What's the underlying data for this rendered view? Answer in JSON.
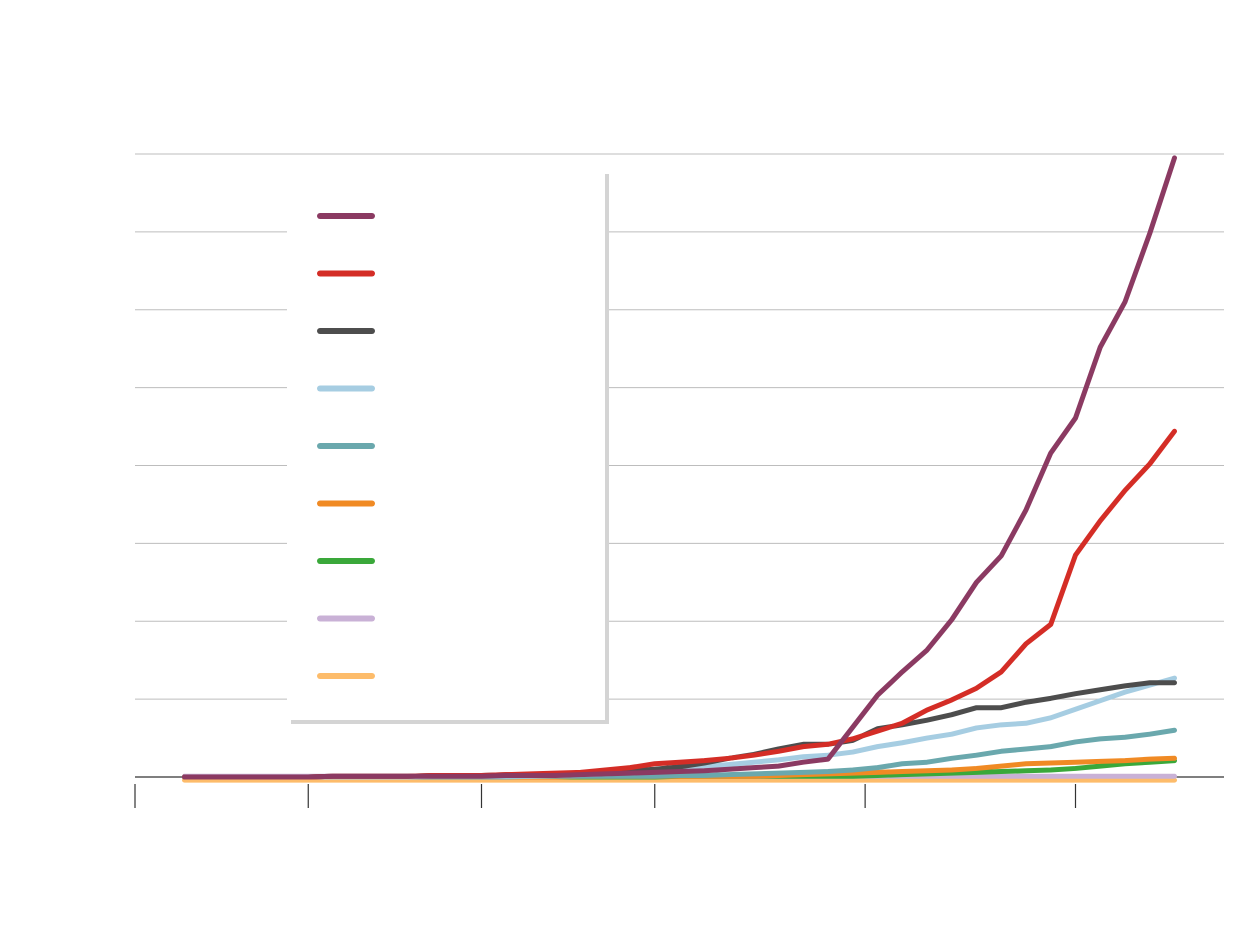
{
  "chart_data": {
    "type": "line",
    "x": [
      2,
      3,
      4,
      5,
      6,
      7,
      8,
      9,
      10,
      11,
      12,
      13,
      14,
      15,
      16,
      17,
      18,
      19,
      20,
      21,
      22,
      23,
      24,
      25,
      26,
      27,
      28,
      29,
      30,
      31,
      32,
      33,
      34,
      35,
      36,
      37,
      38,
      39,
      40,
      41,
      42
    ],
    "xlim": [
      0,
      44
    ],
    "xticks": [
      0,
      7,
      14,
      21,
      29.5,
      38
    ],
    "ylim": [
      0,
      80
    ],
    "yticks": [
      0,
      10,
      20,
      30,
      40,
      50,
      60,
      70,
      80
    ],
    "grid": true,
    "legend": "upper left",
    "series": [
      {
        "color": "#8b3a62",
        "values": [
          0,
          0,
          0,
          0,
          0,
          0,
          0.1,
          0.1,
          0.1,
          0.1,
          0.1,
          0.1,
          0.1,
          0.2,
          0.2,
          0.2,
          0.3,
          0.4,
          0.5,
          0.6,
          0.7,
          0.8,
          1.0,
          1.2,
          1.4,
          1.9,
          2.3,
          6.4,
          10.5,
          13.5,
          16.3,
          20.2,
          25,
          28.4,
          34.3,
          41.6,
          46.1,
          55.2,
          61,
          69.8,
          79.5
        ]
      },
      {
        "color": "#d42d26",
        "values": [
          0,
          0,
          0,
          0,
          0,
          0,
          0.1,
          0.1,
          0.1,
          0.1,
          0.2,
          0.2,
          0.2,
          0.3,
          0.4,
          0.5,
          0.6,
          0.9,
          1.2,
          1.7,
          1.9,
          2.1,
          2.4,
          2.8,
          3.3,
          3.9,
          4.2,
          4.9,
          5.9,
          6.9,
          8.6,
          9.9,
          11.4,
          13.5,
          17.1,
          19.6,
          28.5,
          32.9,
          36.8,
          40.2,
          44.4
        ]
      },
      {
        "color": "#4d4d4d",
        "values": [
          0,
          0,
          0,
          0,
          0,
          0,
          0.1,
          0.1,
          0.1,
          0.1,
          0.2,
          0.2,
          0.2,
          0.3,
          0.3,
          0.4,
          0.5,
          0.6,
          0.8,
          1.0,
          1.3,
          1.8,
          2.4,
          2.9,
          3.6,
          4.2,
          4.2,
          4.7,
          6.2,
          6.7,
          7.3,
          8,
          8.9,
          8.9,
          9.6,
          10.1,
          10.7,
          11.2,
          11.7,
          12.1,
          12.1
        ]
      },
      {
        "color": "#a6cde2",
        "values": [
          0,
          0,
          0,
          0,
          0,
          0,
          0,
          0,
          0,
          0,
          0.1,
          0.1,
          0.1,
          0.1,
          0.1,
          0.2,
          0.3,
          0.4,
          0.6,
          0.8,
          1.0,
          1.3,
          1.6,
          1.9,
          2.2,
          2.6,
          2.8,
          3.2,
          3.9,
          4.4,
          5,
          5.5,
          6.3,
          6.7,
          6.9,
          7.6,
          8.7,
          9.8,
          10.9,
          11.8,
          12.7
        ]
      },
      {
        "color": "#6aa8ad",
        "values": [
          0,
          0,
          0,
          0,
          0,
          0,
          0,
          0,
          0,
          0,
          0,
          0,
          0,
          0,
          0.1,
          0.1,
          0.1,
          0.1,
          0.1,
          0.1,
          0.2,
          0.2,
          0.3,
          0.4,
          0.5,
          0.6,
          0.7,
          0.9,
          1.2,
          1.7,
          1.9,
          2.4,
          2.8,
          3.3,
          3.6,
          3.9,
          4.5,
          4.9,
          5.1,
          5.5,
          6
        ]
      },
      {
        "color": "#f08a24",
        "values": [
          0,
          0,
          0,
          0,
          0,
          0,
          0,
          0,
          0,
          0,
          0,
          0,
          0,
          0,
          0,
          0,
          0.1,
          0.1,
          0.1,
          0.1,
          0.1,
          0.1,
          0.1,
          0.1,
          0.2,
          0.3,
          0.4,
          0.5,
          0.6,
          0.7,
          0.8,
          0.9,
          1.1,
          1.4,
          1.7,
          1.8,
          1.9,
          2.0,
          2.1,
          2.3,
          2.4
        ]
      },
      {
        "color": "#3aa83a",
        "values": [
          0,
          0,
          0,
          0,
          0,
          0,
          0,
          0,
          0,
          0,
          0,
          0,
          0,
          0,
          0,
          0,
          0,
          0,
          0,
          0,
          0.1,
          0.1,
          0.1,
          0.1,
          0.1,
          0.1,
          0.1,
          0.1,
          0.2,
          0.3,
          0.4,
          0.5,
          0.6,
          0.7,
          0.8,
          0.9,
          1.1,
          1.4,
          1.7,
          1.9,
          2.1
        ]
      },
      {
        "color": "#c9b1d6",
        "values": [
          0.1,
          0.1,
          0.1,
          0.1,
          0.1,
          0.1,
          0.1,
          0.1,
          0.1,
          0.1,
          0.1,
          0.1,
          0.1,
          0.1,
          0.1,
          0.1,
          0.1,
          0.1,
          0.1,
          0.1,
          0.1,
          0.1,
          0.1,
          0.1,
          0.1,
          0.1,
          0.1,
          0.1,
          0.1,
          0.1,
          0.1,
          0.1,
          0.1,
          0.1,
          0.1,
          0.1,
          0.1,
          0.1,
          0.1,
          0.1,
          0.1
        ]
      },
      {
        "color": "#fdbc6b",
        "values": [
          -0.4,
          -0.4,
          -0.4,
          -0.4,
          -0.4,
          -0.4,
          -0.4,
          -0.4,
          -0.4,
          -0.4,
          -0.4,
          -0.4,
          -0.4,
          -0.4,
          -0.4,
          -0.4,
          -0.4,
          -0.4,
          -0.4,
          -0.4,
          -0.4,
          -0.4,
          -0.4,
          -0.4,
          -0.4,
          -0.4,
          -0.4,
          -0.4,
          -0.4,
          -0.4,
          -0.4,
          -0.4,
          -0.4,
          -0.4,
          -0.4,
          -0.4,
          -0.4,
          -0.4,
          -0.4,
          -0.4,
          -0.4
        ]
      }
    ]
  }
}
